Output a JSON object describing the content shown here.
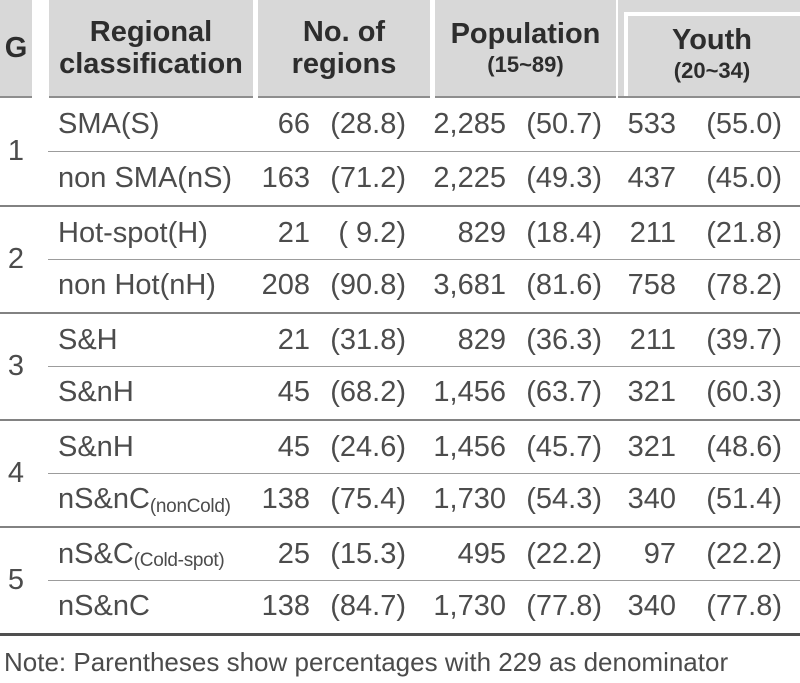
{
  "table": {
    "header": {
      "g": "G",
      "regional": "Regional classification",
      "regions": "No. of regions",
      "population": "Population",
      "population_sub": "(15~89)",
      "youth": "Youth",
      "youth_sub": "(20~34)"
    },
    "groups": [
      {
        "g": "1",
        "rows": [
          {
            "label": "SMA(S)",
            "label_sub": "",
            "regions": "66",
            "regions_pct": "(28.8)",
            "population": "2,285",
            "population_pct": "(50.7)",
            "youth": "533",
            "youth_pct": "(55.0)"
          },
          {
            "label": "non SMA(nS)",
            "label_sub": "",
            "regions": "163",
            "regions_pct": "(71.2)",
            "population": "2,225",
            "population_pct": "(49.3)",
            "youth": "437",
            "youth_pct": "(45.0)"
          }
        ]
      },
      {
        "g": "2",
        "rows": [
          {
            "label": "Hot-spot(H)",
            "label_sub": "",
            "regions": "21",
            "regions_pct": "( 9.2)",
            "population": "829",
            "population_pct": "(18.4)",
            "youth": "211",
            "youth_pct": "(21.8)"
          },
          {
            "label": "non Hot(nH)",
            "label_sub": "",
            "regions": "208",
            "regions_pct": "(90.8)",
            "population": "3,681",
            "population_pct": "(81.6)",
            "youth": "758",
            "youth_pct": "(78.2)"
          }
        ]
      },
      {
        "g": "3",
        "rows": [
          {
            "label": "S&H",
            "label_sub": "",
            "regions": "21",
            "regions_pct": "(31.8)",
            "population": "829",
            "population_pct": "(36.3)",
            "youth": "211",
            "youth_pct": "(39.7)"
          },
          {
            "label": "S&nH",
            "label_sub": "",
            "regions": "45",
            "regions_pct": "(68.2)",
            "population": "1,456",
            "population_pct": "(63.7)",
            "youth": "321",
            "youth_pct": "(60.3)"
          }
        ]
      },
      {
        "g": "4",
        "rows": [
          {
            "label": "S&nH",
            "label_sub": "",
            "regions": "45",
            "regions_pct": "(24.6)",
            "population": "1,456",
            "population_pct": "(45.7)",
            "youth": "321",
            "youth_pct": "(48.6)"
          },
          {
            "label": "nS&nC",
            "label_sub": "(nonCold)",
            "regions": "138",
            "regions_pct": "(75.4)",
            "population": "1,730",
            "population_pct": "(54.3)",
            "youth": "340",
            "youth_pct": "(51.4)"
          }
        ]
      },
      {
        "g": "5",
        "rows": [
          {
            "label": "nS&C",
            "label_sub": "(Cold-spot)",
            "regions": "25",
            "regions_pct": "(15.3)",
            "population": "495",
            "population_pct": "(22.2)",
            "youth": "97",
            "youth_pct": "(22.2)"
          },
          {
            "label": "nS&nC",
            "label_sub": "",
            "regions": "138",
            "regions_pct": "(84.7)",
            "population": "1,730",
            "population_pct": "(77.8)",
            "youth": "340",
            "youth_pct": "(77.8)"
          }
        ]
      }
    ],
    "note": "Note: Parentheses show percentages with 229 as denominator"
  },
  "colors": {
    "header_bg": "#d8d8d8",
    "header_text": "#2d2d2d",
    "body_text": "#4c4c4c",
    "group_separator": "#828282",
    "row_divider": "#9c9c9c",
    "bottom_rule": "#4f4f4f"
  }
}
